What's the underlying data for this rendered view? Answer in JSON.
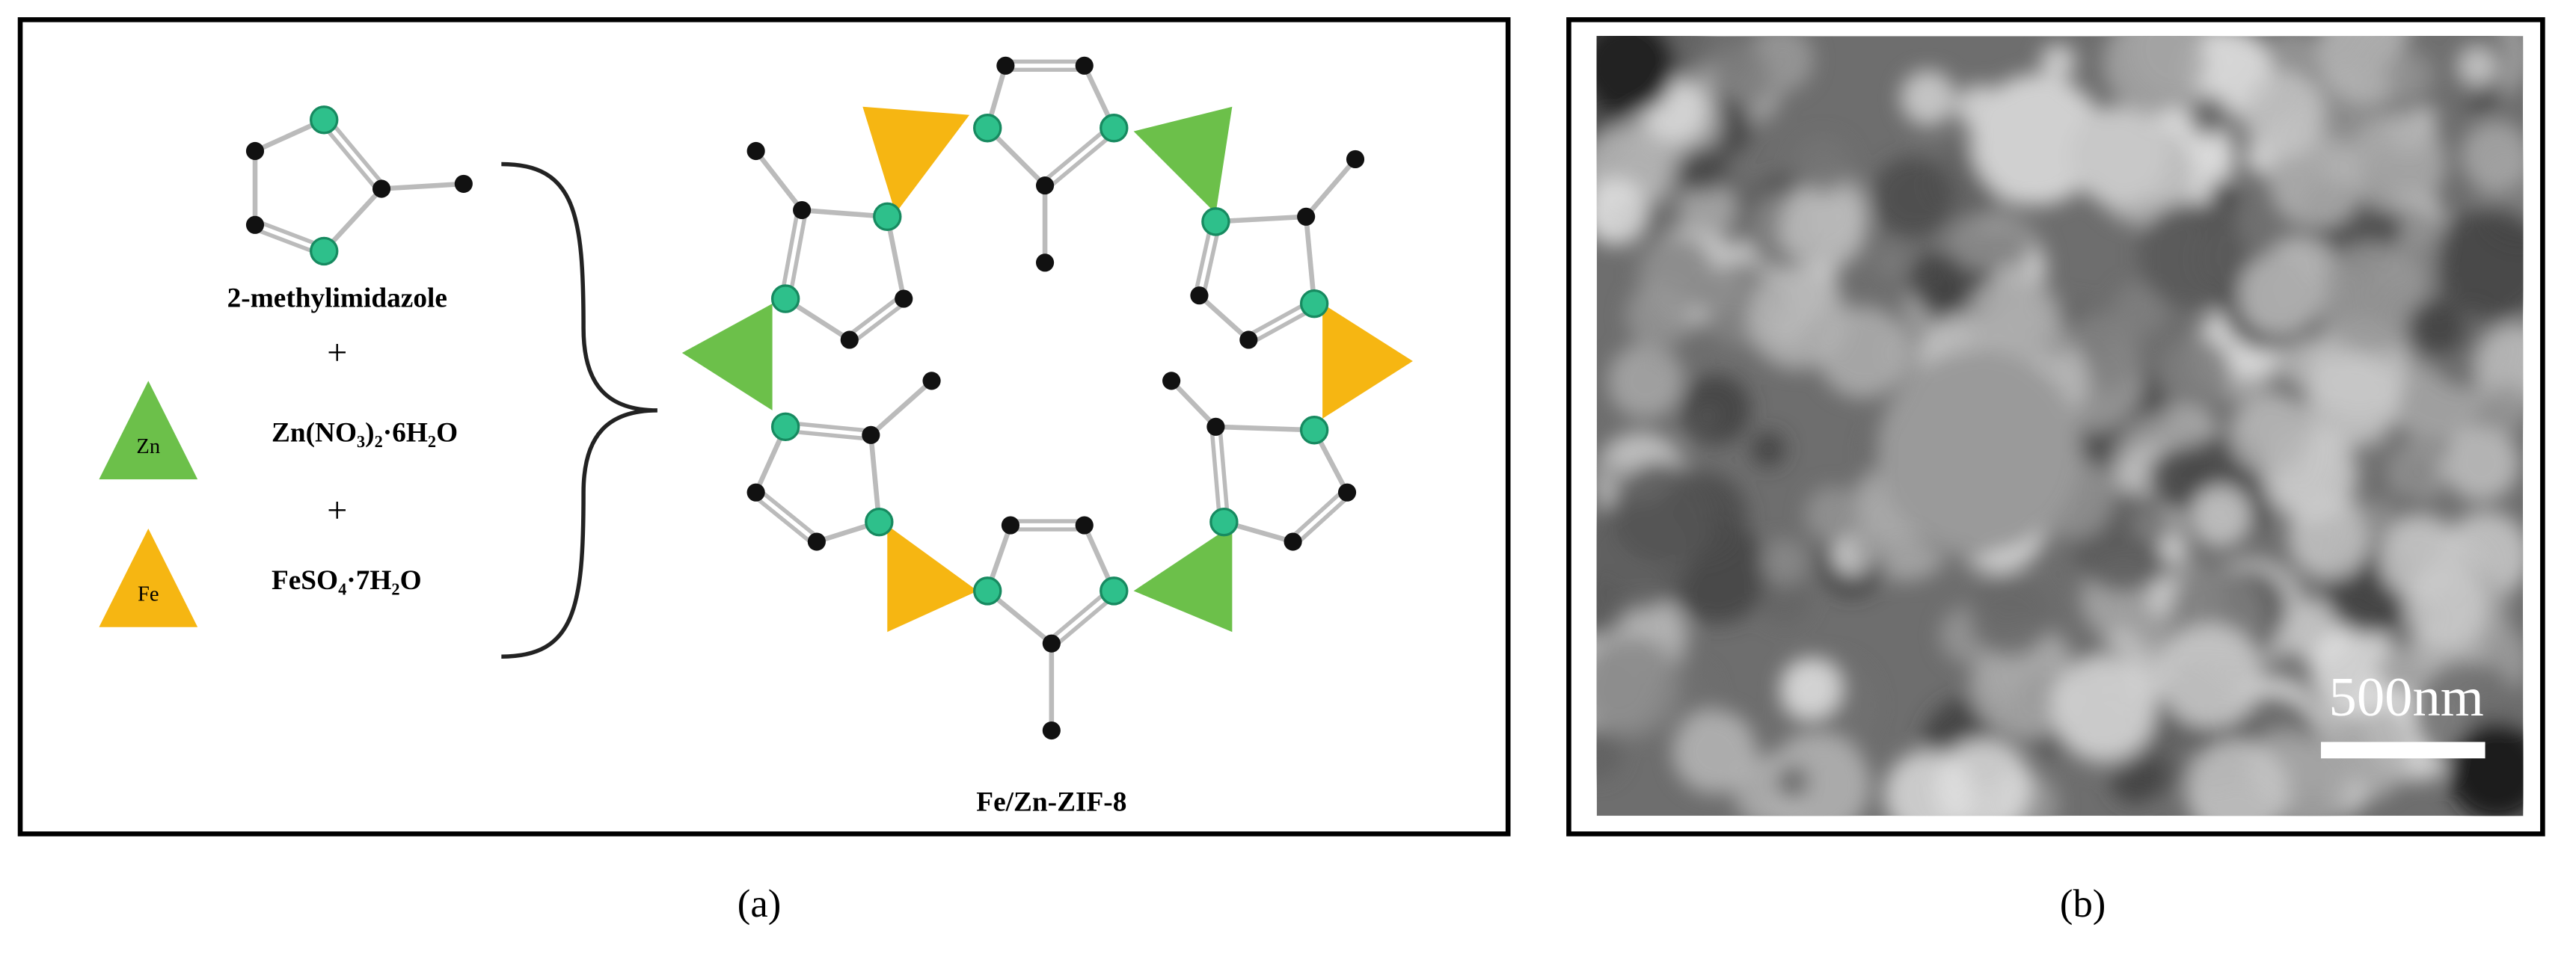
{
  "panel_a": {
    "reactant_1": "2-methylimidazole",
    "plus_1": "+",
    "zn_symbol": "Zn",
    "reactant_2": "Zn(NO₃)₂·6H₂O",
    "plus_2": "+",
    "fe_symbol": "Fe",
    "reactant_3": "FeSO₄·7H₂O",
    "product": "Fe/Zn-ZIF-8",
    "caption": "(a)"
  },
  "panel_b": {
    "scale_bar": "500nm",
    "caption": "(b)"
  }
}
